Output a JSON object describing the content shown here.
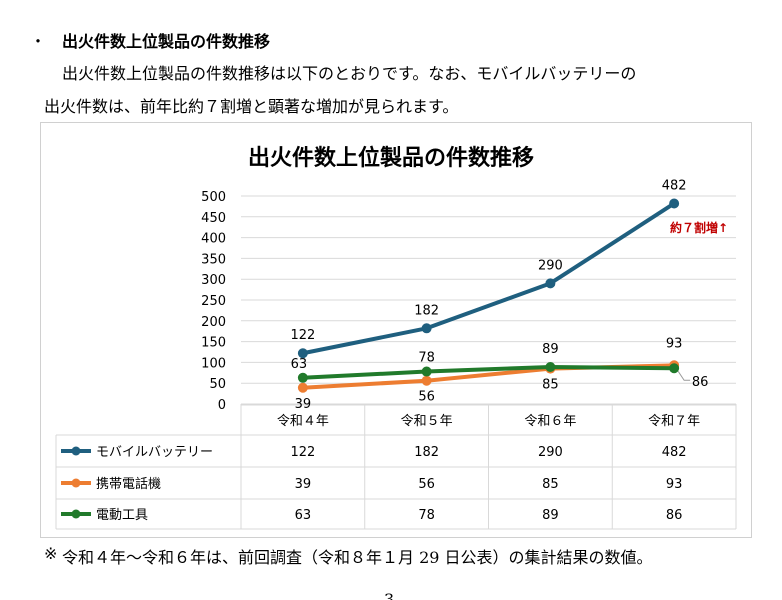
{
  "doc": {
    "bullet": "・",
    "heading": "出火件数上位製品の件数推移",
    "para_line1": "出火件数上位製品の件数推移は以下のとおりです。なお、モバイルバッテリーの",
    "para_line2": "出火件数は、前年比約７割増と顕著な増加が見られます。",
    "note_mark": "※",
    "note": "令和４年～令和６年は、前回調査（令和８年１月 29 日公表）の集計結果の数値。",
    "page_number": "3"
  },
  "chart_data": {
    "type": "line",
    "title": "出火件数上位製品の件数推移",
    "categories": [
      "令和４年",
      "令和５年",
      "令和６年",
      "令和７年"
    ],
    "ylim": [
      0,
      500
    ],
    "yticks": [
      0,
      50,
      100,
      150,
      200,
      250,
      300,
      350,
      400,
      450,
      500
    ],
    "grid": true,
    "legend": "data-table",
    "annotation": "約７割増↑",
    "annotation_color": "#c00000",
    "series": [
      {
        "name": "モバイルバッテリー",
        "values": [
          122,
          182,
          290,
          482
        ],
        "color": "#1f5f7f"
      },
      {
        "name": "携帯電話機",
        "values": [
          39,
          56,
          85,
          93
        ],
        "color": "#ed7d31"
      },
      {
        "name": "電動工具",
        "values": [
          63,
          78,
          89,
          86
        ],
        "color": "#217a2b"
      }
    ]
  }
}
